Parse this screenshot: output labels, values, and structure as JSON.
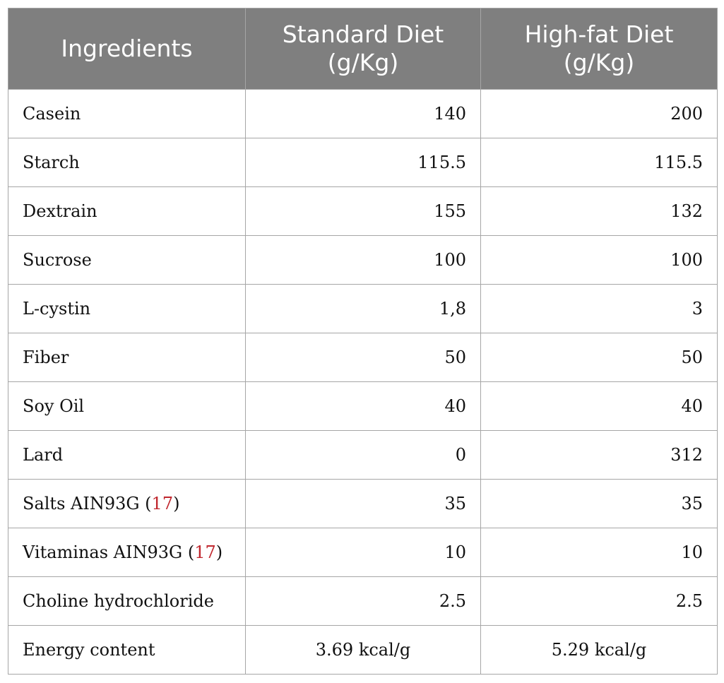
{
  "header": {
    "col1": "Ingredients",
    "col2_line1": "Standard Diet",
    "col2_line2": "(g/Kg)",
    "col3_line1": "High-fat Diet",
    "col3_line2": "(g/Kg)"
  },
  "rows": [
    {
      "name": "Casein",
      "standard": "140",
      "highfat": "200"
    },
    {
      "name": "Starch",
      "standard": "115.5",
      "highfat": "115.5"
    },
    {
      "name": "Dextrain",
      "standard": "155",
      "highfat": "132"
    },
    {
      "name": "Sucrose",
      "standard": "100",
      "highfat": "100"
    },
    {
      "name": "L-cystin",
      "standard": "1,8",
      "highfat": "3"
    },
    {
      "name": "Fiber",
      "standard": "50",
      "highfat": "50"
    },
    {
      "name": "Soy Oil",
      "standard": "40",
      "highfat": "40"
    },
    {
      "name": "Lard",
      "standard": "0",
      "highfat": "312"
    },
    {
      "name": "Salts AIN93G",
      "ref": "17",
      "standard": "35",
      "highfat": "35"
    },
    {
      "name": "Vitaminas AIN93G",
      "ref": "17",
      "standard": "10",
      "highfat": "10"
    },
    {
      "name": "Choline hydrochloride",
      "standard": "2.5",
      "highfat": "2.5"
    },
    {
      "name": "Energy content",
      "standard": "3.69 kcal/g",
      "highfat": "5.29 kcal/g"
    }
  ],
  "colors": {
    "header_bg": "#7f7f7f",
    "header_text": "#ffffff",
    "grid": "#a6a6a6",
    "reference_link": "#c0262d"
  }
}
